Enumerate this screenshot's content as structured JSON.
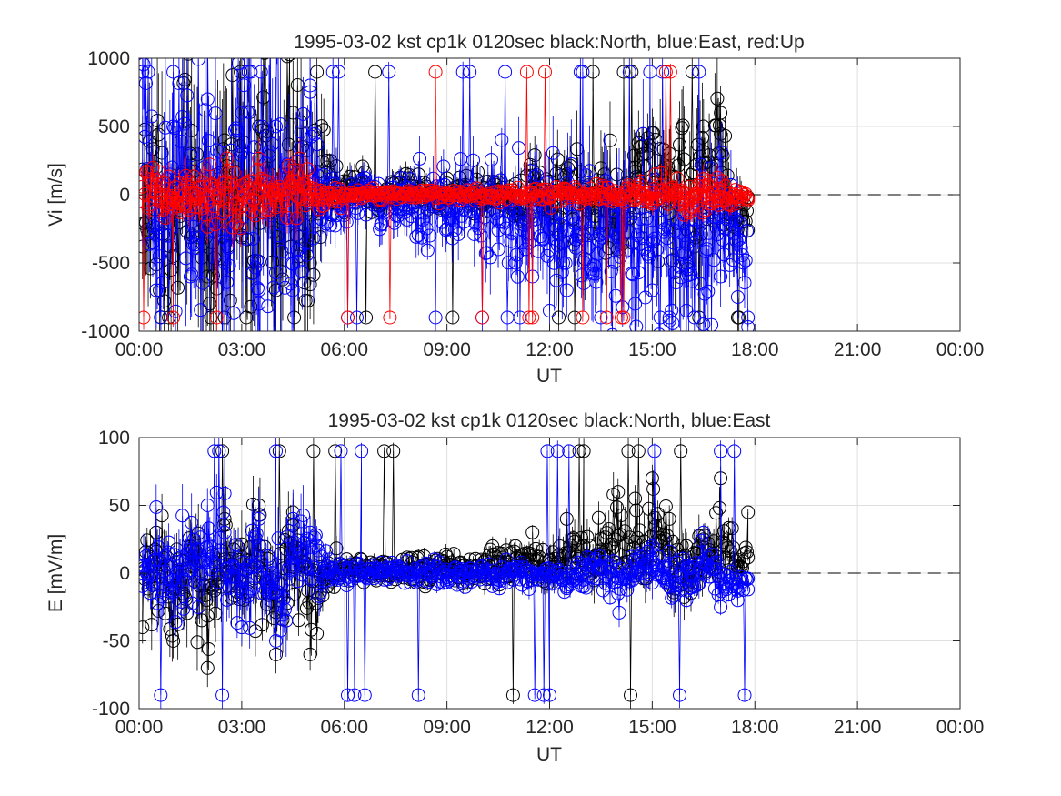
{
  "chart_data": [
    {
      "type": "line",
      "title": "1995-03-02 kst cp1k 0120sec black:North, blue:East, red:Up",
      "xlabel": "UT",
      "ylabel": "Vi [m/s]",
      "xlim": [
        0,
        24
      ],
      "ylim": [
        -1000,
        1000
      ],
      "xticks": [
        0,
        3,
        6,
        9,
        12,
        15,
        18,
        21,
        24
      ],
      "xtick_labels": [
        "00:00",
        "03:00",
        "06:00",
        "09:00",
        "12:00",
        "15:00",
        "18:00",
        "21:00",
        "00:00"
      ],
      "yticks": [
        -1000,
        -500,
        0,
        500,
        1000
      ],
      "ytick_labels": [
        "-1000",
        "-500",
        "0",
        "500",
        "1000"
      ],
      "grid": true,
      "x_units": "hours UT",
      "data_end_hour": 17.8,
      "reference_line": {
        "y": 0,
        "from_x": 17.8,
        "to_x": 24,
        "style": "dashed"
      },
      "series": [
        {
          "name": "North",
          "color": "#000000",
          "marker": "circle",
          "error_bars": true,
          "x": [
            0.1,
            0.5,
            1.0,
            1.5,
            2.0,
            2.5,
            3.0,
            3.5,
            4.0,
            4.5,
            5.0,
            5.5,
            6.0,
            6.5,
            7.0,
            7.5,
            8.0,
            8.5,
            9.0,
            9.5,
            10.0,
            10.5,
            11.0,
            11.5,
            12.0,
            12.5,
            13.0,
            13.5,
            14.0,
            14.5,
            15.0,
            15.5,
            16.0,
            16.5,
            17.0,
            17.5,
            17.8
          ],
          "y": [
            -380,
            200,
            -450,
            300,
            -600,
            400,
            -300,
            500,
            -700,
            600,
            -500,
            250,
            100,
            50,
            -80,
            90,
            30,
            -40,
            120,
            60,
            -60,
            90,
            -100,
            180,
            -250,
            150,
            -300,
            -200,
            -400,
            200,
            450,
            300,
            -500,
            500,
            600,
            -250,
            -260
          ],
          "rms_amplitude": [
            600,
            700,
            800,
            850,
            900,
            900,
            850,
            900,
            950,
            950,
            700,
            200,
            150,
            120,
            120,
            120,
            120,
            120,
            130,
            130,
            140,
            150,
            170,
            200,
            300,
            350,
            400,
            350,
            400,
            400,
            450,
            450,
            500,
            500,
            500,
            300,
            100
          ]
        },
        {
          "name": "East",
          "color": "#0000ff",
          "marker": "circle",
          "error_bars": true,
          "x": [
            0.1,
            0.5,
            1.0,
            1.5,
            2.0,
            2.5,
            3.0,
            3.5,
            4.0,
            4.5,
            5.0,
            5.5,
            6.0,
            6.5,
            7.0,
            7.5,
            8.0,
            8.5,
            9.0,
            9.5,
            10.0,
            10.5,
            11.0,
            11.5,
            12.0,
            12.5,
            13.0,
            13.5,
            14.0,
            14.5,
            15.0,
            15.5,
            16.0,
            16.5,
            17.0,
            17.5,
            17.8
          ],
          "y": [
            900,
            -700,
            500,
            -600,
            700,
            -500,
            600,
            -800,
            500,
            -700,
            800,
            -200,
            -150,
            100,
            -120,
            -150,
            -50,
            -300,
            -250,
            -200,
            -300,
            -400,
            -500,
            -600,
            -850,
            -700,
            -650,
            -900,
            -300,
            -800,
            -700,
            -900,
            -850,
            -950,
            -600,
            -750,
            -970
          ],
          "rms_amplitude": [
            700,
            700,
            750,
            800,
            800,
            800,
            850,
            850,
            900,
            900,
            700,
            250,
            200,
            180,
            180,
            200,
            220,
            250,
            280,
            300,
            320,
            340,
            380,
            400,
            480,
            500,
            500,
            520,
            500,
            520,
            550,
            550,
            550,
            550,
            550,
            400,
            150
          ]
        },
        {
          "name": "Up",
          "color": "#ff0000",
          "marker": "circle",
          "error_bars": true,
          "x": [
            0.1,
            0.5,
            1.0,
            1.5,
            2.0,
            2.5,
            3.0,
            3.5,
            4.0,
            4.5,
            5.0,
            5.5,
            6.0,
            6.5,
            7.0,
            7.5,
            8.0,
            8.5,
            9.0,
            9.5,
            10.0,
            10.5,
            11.0,
            11.5,
            12.0,
            12.5,
            13.0,
            13.5,
            14.0,
            14.5,
            15.0,
            15.5,
            16.0,
            16.5,
            17.0,
            17.5,
            17.8
          ],
          "y": [
            -50,
            60,
            -40,
            30,
            -60,
            50,
            -30,
            40,
            -50,
            70,
            50,
            10,
            -5,
            5,
            -3,
            4,
            -2,
            3,
            -4,
            5,
            -6,
            8,
            -10,
            12,
            -15,
            10,
            -12,
            10,
            -20,
            30,
            -30,
            40,
            -50,
            60,
            -40,
            -10,
            -40
          ],
          "rms_amplitude": [
            160,
            170,
            170,
            180,
            180,
            180,
            180,
            180,
            200,
            220,
            160,
            60,
            40,
            35,
            35,
            35,
            35,
            35,
            35,
            35,
            35,
            40,
            45,
            50,
            60,
            60,
            60,
            60,
            70,
            90,
            100,
            110,
            130,
            140,
            120,
            60,
            20
          ]
        }
      ]
    },
    {
      "type": "line",
      "title": "1995-03-02 kst cp1k 0120sec black:North, blue:East",
      "xlabel": "UT",
      "ylabel": "E [mV/m]",
      "xlim": [
        0,
        24
      ],
      "ylim": [
        -100,
        100
      ],
      "xticks": [
        0,
        3,
        6,
        9,
        12,
        15,
        18,
        21,
        24
      ],
      "xtick_labels": [
        "00:00",
        "03:00",
        "06:00",
        "09:00",
        "12:00",
        "15:00",
        "18:00",
        "21:00",
        "00:00"
      ],
      "yticks": [
        -100,
        -50,
        0,
        50,
        100
      ],
      "ytick_labels": [
        "-100",
        "-50",
        "0",
        "50",
        "100"
      ],
      "grid": true,
      "x_units": "hours UT",
      "data_end_hour": 17.8,
      "reference_line": {
        "y": 0,
        "from_x": 17.8,
        "to_x": 24,
        "style": "dashed"
      },
      "series": [
        {
          "name": "North",
          "color": "#000000",
          "marker": "circle",
          "error_bars": true,
          "x": [
            0.1,
            0.5,
            1.0,
            1.5,
            2.0,
            2.5,
            3.0,
            3.5,
            4.0,
            4.5,
            5.0,
            5.5,
            6.0,
            6.5,
            7.0,
            7.5,
            8.0,
            8.5,
            9.0,
            9.5,
            10.0,
            10.5,
            11.0,
            11.5,
            12.0,
            12.5,
            13.0,
            13.5,
            14.0,
            14.5,
            15.0,
            15.5,
            16.0,
            16.5,
            17.0,
            17.5,
            17.8
          ],
          "y": [
            -40,
            30,
            -50,
            20,
            -70,
            40,
            -40,
            50,
            -60,
            45,
            -60,
            -10,
            5,
            10,
            5,
            0,
            8,
            -5,
            12,
            6,
            10,
            15,
            20,
            30,
            10,
            40,
            20,
            25,
            60,
            55,
            70,
            40,
            20,
            25,
            70,
            5,
            45
          ],
          "rms_amplitude": [
            30,
            30,
            32,
            32,
            35,
            35,
            35,
            35,
            35,
            35,
            30,
            12,
            10,
            9,
            9,
            9,
            9,
            9,
            9,
            10,
            10,
            11,
            12,
            14,
            16,
            20,
            20,
            22,
            25,
            25,
            25,
            25,
            25,
            25,
            22,
            12,
            5
          ]
        },
        {
          "name": "East",
          "color": "#0000ff",
          "marker": "circle",
          "error_bars": true,
          "x": [
            0.1,
            0.5,
            1.0,
            1.5,
            2.0,
            2.5,
            3.0,
            3.5,
            4.0,
            4.5,
            5.0,
            5.5,
            6.0,
            6.5,
            7.0,
            7.5,
            8.0,
            8.5,
            9.0,
            9.5,
            10.0,
            10.5,
            11.0,
            11.5,
            12.0,
            12.5,
            13.0,
            13.5,
            14.0,
            14.5,
            15.0,
            15.5,
            16.0,
            16.5,
            17.0,
            17.5,
            17.8
          ],
          "y": [
            5,
            10,
            -5,
            20,
            50,
            30,
            -40,
            40,
            -50,
            40,
            30,
            5,
            -5,
            3,
            -2,
            4,
            0,
            3,
            -3,
            2,
            5,
            -5,
            3,
            0,
            2,
            -10,
            -5,
            5,
            -15,
            10,
            20,
            -10,
            -20,
            30,
            -25,
            -20,
            -12
          ],
          "rms_amplitude": [
            28,
            28,
            30,
            30,
            32,
            32,
            32,
            32,
            32,
            32,
            28,
            12,
            8,
            8,
            8,
            8,
            8,
            8,
            8,
            8,
            8,
            9,
            9,
            9,
            10,
            12,
            12,
            12,
            14,
            14,
            15,
            15,
            15,
            16,
            15,
            10,
            4
          ]
        }
      ]
    }
  ]
}
